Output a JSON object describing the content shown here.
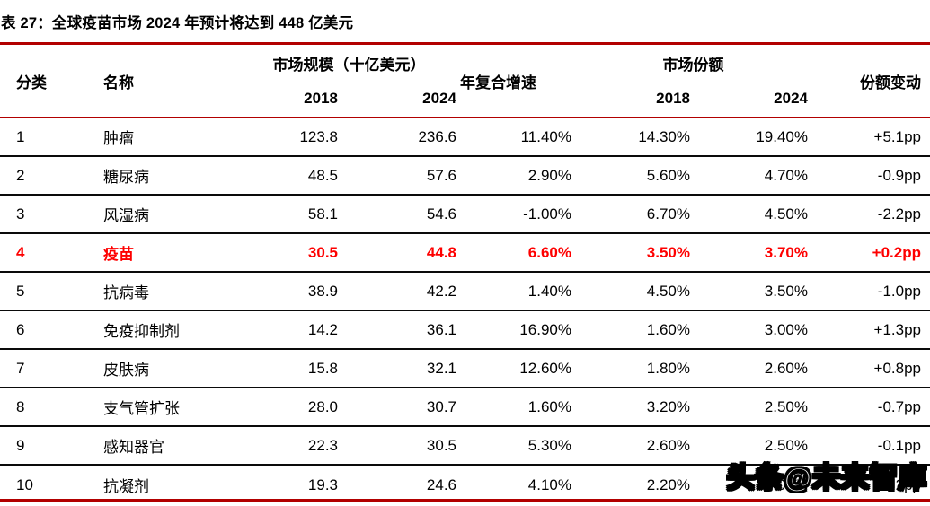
{
  "title": "表 27：全球疫苗市场 2024 年预计将达到 448 亿美元",
  "colors": {
    "rule_red": "#b20000",
    "highlight_red": "#fe0000",
    "row_divider": "#0a0a0a",
    "text": "#000000",
    "background": "#ffffff"
  },
  "table": {
    "headers": {
      "category": "分类",
      "name": "名称",
      "market_size_group": "市场规模（十亿美元）",
      "market_size_2018": "2018",
      "market_size_2024": "2024",
      "cagr_line1": "年复合",
      "cagr_line2": "增速",
      "share_group": "市场份额",
      "share_2018": "2018",
      "share_2024": "2024",
      "share_change": "份额变动"
    },
    "rows": [
      {
        "no": "1",
        "name": "肿瘤",
        "size_2018": "123.8",
        "size_2024": "236.6",
        "cagr": "11.40%",
        "share_2018": "14.30%",
        "share_2024": "19.40%",
        "change": "+5.1pp",
        "highlight": false
      },
      {
        "no": "2",
        "name": "糖尿病",
        "size_2018": "48.5",
        "size_2024": "57.6",
        "cagr": "2.90%",
        "share_2018": "5.60%",
        "share_2024": "4.70%",
        "change": "-0.9pp",
        "highlight": false
      },
      {
        "no": "3",
        "name": "风湿病",
        "size_2018": "58.1",
        "size_2024": "54.6",
        "cagr": "-1.00%",
        "share_2018": "6.70%",
        "share_2024": "4.50%",
        "change": "-2.2pp",
        "highlight": false
      },
      {
        "no": "4",
        "name": "疫苗",
        "size_2018": "30.5",
        "size_2024": "44.8",
        "cagr": "6.60%",
        "share_2018": "3.50%",
        "share_2024": "3.70%",
        "change": "+0.2pp",
        "highlight": true
      },
      {
        "no": "5",
        "name": "抗病毒",
        "size_2018": "38.9",
        "size_2024": "42.2",
        "cagr": "1.40%",
        "share_2018": "4.50%",
        "share_2024": "3.50%",
        "change": "-1.0pp",
        "highlight": false
      },
      {
        "no": "6",
        "name": "免疫抑制剂",
        "size_2018": "14.2",
        "size_2024": "36.1",
        "cagr": "16.90%",
        "share_2018": "1.60%",
        "share_2024": "3.00%",
        "change": "+1.3pp",
        "highlight": false
      },
      {
        "no": "7",
        "name": "皮肤病",
        "size_2018": "15.8",
        "size_2024": "32.1",
        "cagr": "12.60%",
        "share_2018": "1.80%",
        "share_2024": "2.60%",
        "change": "+0.8pp",
        "highlight": false
      },
      {
        "no": "8",
        "name": "支气管扩张",
        "size_2018": "28.0",
        "size_2024": "30.7",
        "cagr": "1.60%",
        "share_2018": "3.20%",
        "share_2024": "2.50%",
        "change": "-0.7pp",
        "highlight": false
      },
      {
        "no": "9",
        "name": "感知器官",
        "size_2018": "22.3",
        "size_2024": "30.5",
        "cagr": "5.30%",
        "share_2018": "2.60%",
        "share_2024": "2.50%",
        "change": "-0.1pp",
        "highlight": false
      },
      {
        "no": "10",
        "name": "抗凝剂",
        "size_2018": "19.3",
        "size_2024": "24.6",
        "cagr": "4.10%",
        "share_2018": "2.20%",
        "share_2024": "2.00%",
        "change": "-0.2pp",
        "highlight": false
      }
    ]
  },
  "chart_data": {
    "type": "table",
    "title": "表 27：全球疫苗市场 2024 年预计将达到 448 亿美元",
    "columns": [
      "分类",
      "名称",
      "市场规模 2018 (十亿美元)",
      "市场规模 2024 (十亿美元)",
      "年复合增速",
      "市场份额 2018",
      "市场份额 2024",
      "份额变动"
    ],
    "rows": [
      [
        1,
        "肿瘤",
        123.8,
        236.6,
        "11.40%",
        "14.30%",
        "19.40%",
        "+5.1pp"
      ],
      [
        2,
        "糖尿病",
        48.5,
        57.6,
        "2.90%",
        "5.60%",
        "4.70%",
        "-0.9pp"
      ],
      [
        3,
        "风湿病",
        58.1,
        54.6,
        "-1.00%",
        "6.70%",
        "4.50%",
        "-2.2pp"
      ],
      [
        4,
        "疫苗",
        30.5,
        44.8,
        "6.60%",
        "3.50%",
        "3.70%",
        "+0.2pp"
      ],
      [
        5,
        "抗病毒",
        38.9,
        42.2,
        "1.40%",
        "4.50%",
        "3.50%",
        "-1.0pp"
      ],
      [
        6,
        "免疫抑制剂",
        14.2,
        36.1,
        "16.90%",
        "1.60%",
        "3.00%",
        "+1.3pp"
      ],
      [
        7,
        "皮肤病",
        15.8,
        32.1,
        "12.60%",
        "1.80%",
        "2.60%",
        "+0.8pp"
      ],
      [
        8,
        "支气管扩张",
        28.0,
        30.7,
        "1.60%",
        "3.20%",
        "2.50%",
        "-0.7pp"
      ],
      [
        9,
        "感知器官",
        22.3,
        30.5,
        "5.30%",
        "2.60%",
        "2.50%",
        "-0.1pp"
      ],
      [
        10,
        "抗凝剂",
        19.3,
        24.6,
        "4.10%",
        "2.20%",
        "2.00%",
        "-0.2pp"
      ]
    ],
    "highlighted_row": 4
  },
  "watermark": "头条@未来智库"
}
